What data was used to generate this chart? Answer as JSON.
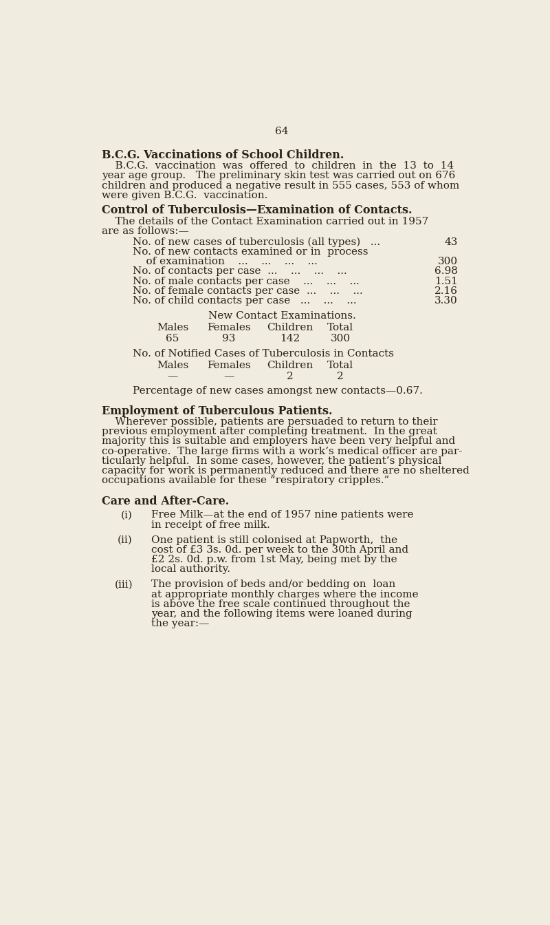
{
  "bg_color": "#f0ece0",
  "text_color": "#2a2118",
  "page_number": "64",
  "title1": "B.C.G. Vaccinations of School Children.",
  "para1_lines": [
    "    B.C.G.  vaccination  was  offered  to  children  in  the  13  to  14",
    "year age group.   The preliminary skin test was carried out on 676",
    "children and produced a negative result in 555 cases, 553 of whom",
    "were given B.C.G.  vaccination."
  ],
  "title2": "Control of Tuberculosis—Examination of Contacts.",
  "para2_lines": [
    "    The details of the Contact Examination carried out in 1957",
    "are as follows:—"
  ],
  "stat1_text": "No. of new cases of tuberculosis (all types)   ...",
  "stat1_val": "43",
  "stat2a_text": "No. of new contacts examined or in  process",
  "stat2b_text": "    of examination    ...    ...    ...    ...",
  "stat2_val": "300",
  "stat3_text": "No. of contacts per case  ...    ...    ...    ...",
  "stat3_val": "6.98",
  "stat4_text": "No. of male contacts per case    ...    ...    ...",
  "stat4_val": "1.51",
  "stat5_text": "No. of female contacts per case  ...    ...    ...",
  "stat5_val": "2.16",
  "stat6_text": "No. of child contacts per case   ...    ...    ...",
  "stat6_val": "3.30",
  "table1_title": "New Contact Examinations.",
  "table1_headers": [
    "Males",
    "Females",
    "Children",
    "Total"
  ],
  "table1_values": [
    "65",
    "93",
    "142",
    "300"
  ],
  "table2_title": "No. of Notified Cases of Tuberculosis in Contacts",
  "table2_headers": [
    "Males",
    "Females",
    "Children",
    "Total"
  ],
  "table2_values": [
    "—",
    "—",
    "2",
    "2"
  ],
  "percentage_line": "Percentage of new cases amongst new contacts—0.67.",
  "title3": "Employment of Tuberculous Patients.",
  "para3_lines": [
    "    Wherever possible, patients are persuaded to return to their",
    "previous employment after completing treatment.  In the great",
    "majority this is suitable and employers have been very helpful and",
    "co-operative.  The large firms with a work’s medical officer are par-",
    "ticularly helpful.  In some cases, however, the patient’s physical",
    "capacity for work is permanently reduced and there are no sheltered",
    "occupations available for these “respiratory cripples.”"
  ],
  "title4": "Care and After-Care.",
  "item1_label": "(i)",
  "item1_lines": [
    "Free Milk—at the end of 1957 nine patients were",
    "in receipt of free milk."
  ],
  "item2_label": "(ii)",
  "item2_lines": [
    "One patient is still colonised at Papworth,  the",
    "cost of £3 3s. 0d. per week to the 30th April and",
    "£2 2s. 0d. p.w. from 1st May, being met by the",
    "local authority."
  ],
  "item3_label": "(iii)",
  "item3_lines": [
    "The provision of beds and/or bedding on  loan",
    "at appropriate monthly charges where the income",
    "is above the free scale continued throughout the",
    "year, and the following items were loaned during",
    "the year:—"
  ]
}
